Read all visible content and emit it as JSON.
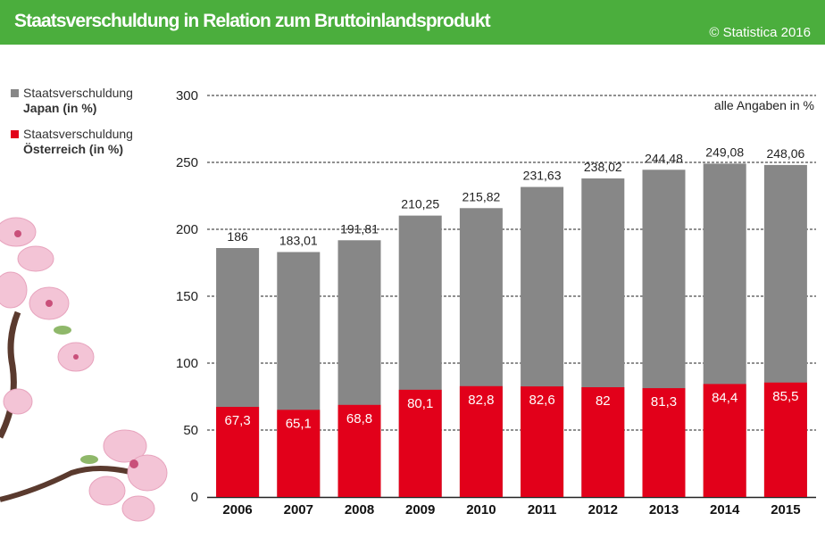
{
  "header": {
    "title": "Staatsverschuldung in Relation zum Bruttoinlandsprodukt",
    "copyright": "© Statistica 2016",
    "color": "#4bae3d"
  },
  "legend": {
    "items": [
      {
        "line1": "Staatsverschuldung",
        "line2": "Japan (in %)",
        "color": "#878787"
      },
      {
        "line1": "Staatsverschuldung",
        "line2": "Österreich (in %)",
        "color": "#e2001a"
      }
    ]
  },
  "decoration": {
    "icon": "cherry-blossom-icon"
  },
  "chart_data": {
    "type": "bar",
    "note": "alle Angaben in %",
    "categories": [
      "2006",
      "2007",
      "2008",
      "2009",
      "2010",
      "2011",
      "2012",
      "2013",
      "2014",
      "2015"
    ],
    "series": [
      {
        "name": "Staatsverschuldung Japan (in %)",
        "color": "#878787",
        "values": [
          186,
          183.01,
          191.81,
          210.25,
          215.82,
          231.63,
          238.02,
          244.48,
          249.08,
          248.06
        ],
        "labels": [
          "186",
          "183,01",
          "191,81",
          "210,25",
          "215,82",
          "231,63",
          "238,02",
          "244,48",
          "249,08",
          "248,06"
        ]
      },
      {
        "name": "Staatsverschuldung Österreich (in %)",
        "color": "#e2001a",
        "values": [
          67.3,
          65.1,
          68.8,
          80.1,
          82.8,
          82.6,
          82,
          81.3,
          84.4,
          85.5
        ],
        "labels": [
          "67,3",
          "65,1",
          "68,8",
          "80,1",
          "82,8",
          "82,6",
          "82",
          "81,3",
          "84,4",
          "85,5"
        ]
      }
    ],
    "yticks": [
      "0",
      "50",
      "100",
      "150",
      "200",
      "250",
      "300"
    ],
    "ylim": [
      0,
      300
    ],
    "grid": "dashed",
    "overlap": true
  }
}
